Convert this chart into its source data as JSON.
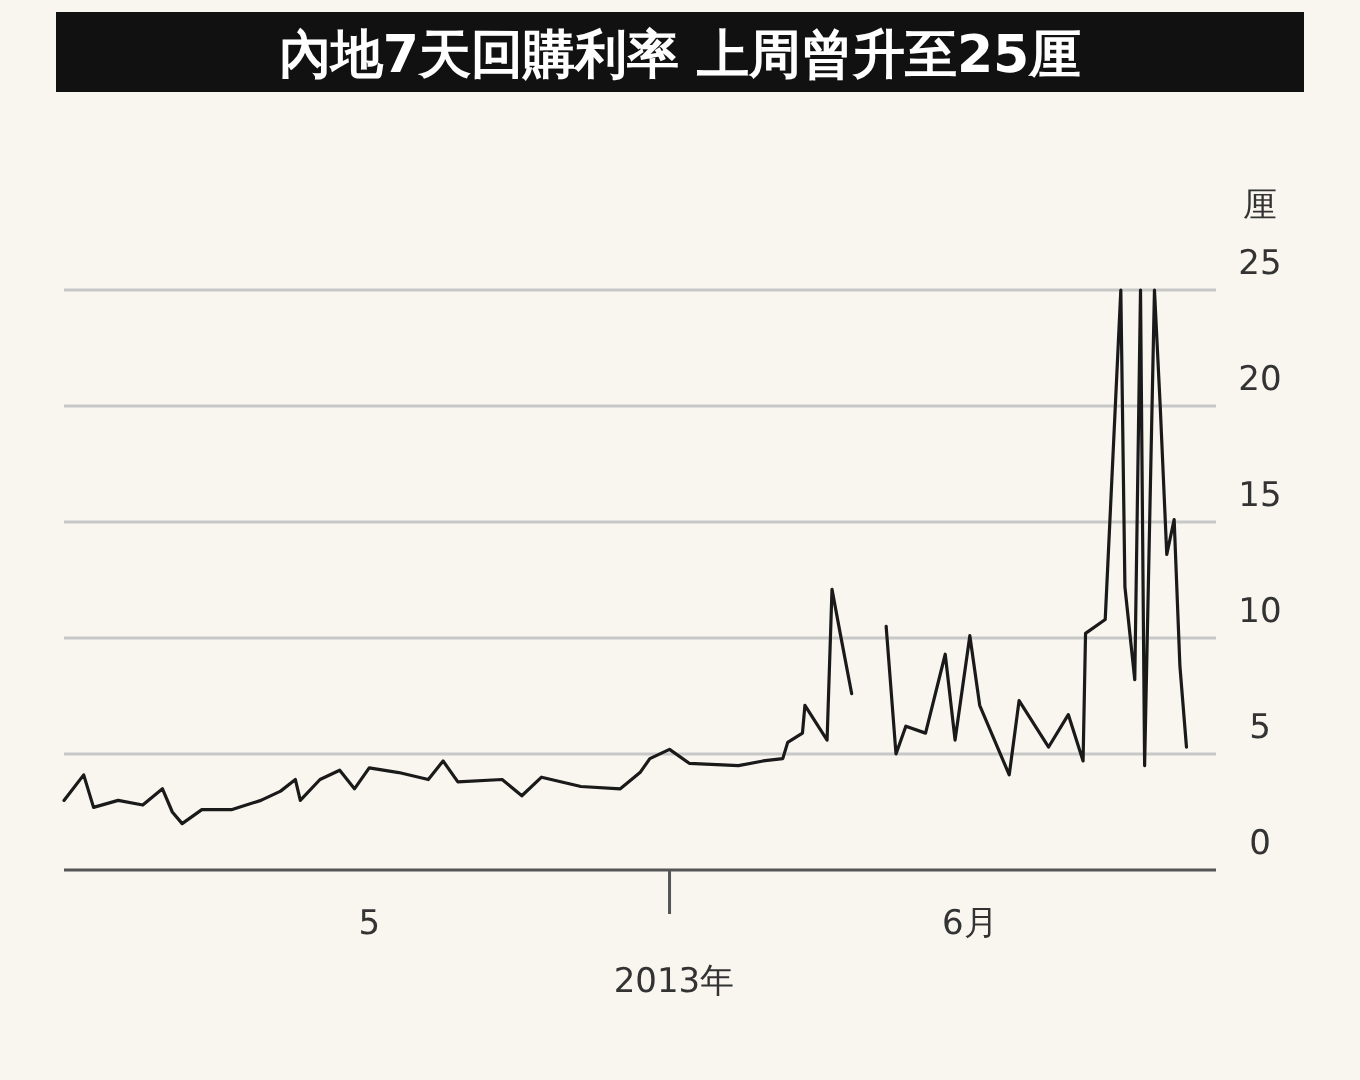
{
  "chart_data": {
    "type": "line",
    "title": "內地7天回購利率 上周曾升至25厘",
    "xlabel": "2013年",
    "ylabel": "厘",
    "color": "#1a1a1a",
    "grid": "y",
    "x": [
      "2013-05-01T00:00",
      "2013-05-02T00:00",
      "2013-05-02T12:00",
      "2013-05-03T18:00",
      "2013-05-05T00:00",
      "2013-05-06T00:00",
      "2013-05-06T12:00",
      "2013-05-07T00:00",
      "2013-05-08T00:00",
      "2013-05-09T12:00",
      "2013-05-11T00:00",
      "2013-05-12T00:00",
      "2013-05-12T18:00",
      "2013-05-13T00:00",
      "2013-05-14T00:00",
      "2013-05-15T00:00",
      "2013-05-15T18:00",
      "2013-05-16T12:00",
      "2013-05-18T00:00",
      "2013-05-19T12:00",
      "2013-05-20T06:00",
      "2013-05-21T00:00",
      "2013-05-23T06:00",
      "2013-05-24T06:00",
      "2013-05-25T06:00",
      "2013-05-27T06:00",
      "2013-05-29T06:00",
      "2013-05-30T06:00",
      "2013-05-30T18:00",
      "2013-05-31T18:00",
      "2013-06-01T18:00",
      "2013-06-04T06:00",
      "2013-06-05T12:00",
      "2013-06-06T12:00",
      "2013-06-06T18:00",
      "2013-06-07T12:00",
      "2013-06-07T15:00",
      "2013-06-08T18:00",
      "2013-06-09T00:00",
      "2013-06-09T10:00",
      "2013-06-10T00:00",
      "2013-06-11T00:00",
      "2013-06-11T18:00",
      "2013-06-12T06:00",
      "2013-06-12T18:00",
      "2013-06-13T18:00",
      "2013-06-14T18:00",
      "2013-06-15T06:00",
      "2013-06-16T00:00",
      "2013-06-16T12:00",
      "2013-06-18T00:00",
      "2013-06-18T12:00",
      "2013-06-20T00:00",
      "2013-06-21T00:00",
      "2013-06-21T18:00",
      "2013-06-21T21:00",
      "2013-06-22T21:00",
      "2013-06-23T16:00",
      "2013-06-23T21:00",
      "2013-06-24T09:00",
      "2013-06-24T16:00",
      "2013-06-24T21:00",
      "2013-06-25T09:00",
      "2013-06-25T16:00",
      "2013-06-26T00:00",
      "2013-06-26T09:00",
      "2013-06-26T16:00",
      "2013-06-27T00:00"
    ],
    "values": [
      3.0,
      4.1,
      2.7,
      3.0,
      2.8,
      3.5,
      2.5,
      2.0,
      2.6,
      2.6,
      3.0,
      3.4,
      3.9,
      3.0,
      3.9,
      4.3,
      3.5,
      4.4,
      4.2,
      3.9,
      4.7,
      3.8,
      3.9,
      3.2,
      4.0,
      3.6,
      3.5,
      4.2,
      4.8,
      5.2,
      4.6,
      4.5,
      4.7,
      4.8,
      5.5,
      5.9,
      7.1,
      5.6,
      12.1,
      10.2,
      7.6,
      null,
      10.5,
      5.0,
      6.2,
      5.9,
      9.3,
      5.6,
      10.1,
      7.1,
      4.1,
      7.3,
      5.3,
      6.7,
      4.7,
      10.2,
      10.8,
      25,
      12.2,
      8.2,
      25,
      4.5,
      25,
      20,
      13.6,
      15.1,
      8.8,
      5.3
    ],
    "xlim": [
      "2013-05-01T00:00",
      "2013-06-28T12:00"
    ],
    "xticks": [
      {
        "value": "2013-05-16T12:00",
        "label": "5"
      },
      {
        "value": "2013-06-16T00:00",
        "label": "6月"
      }
    ],
    "ylim": [
      0,
      25
    ],
    "yticks": [
      0,
      5,
      10,
      15,
      20,
      25
    ]
  }
}
